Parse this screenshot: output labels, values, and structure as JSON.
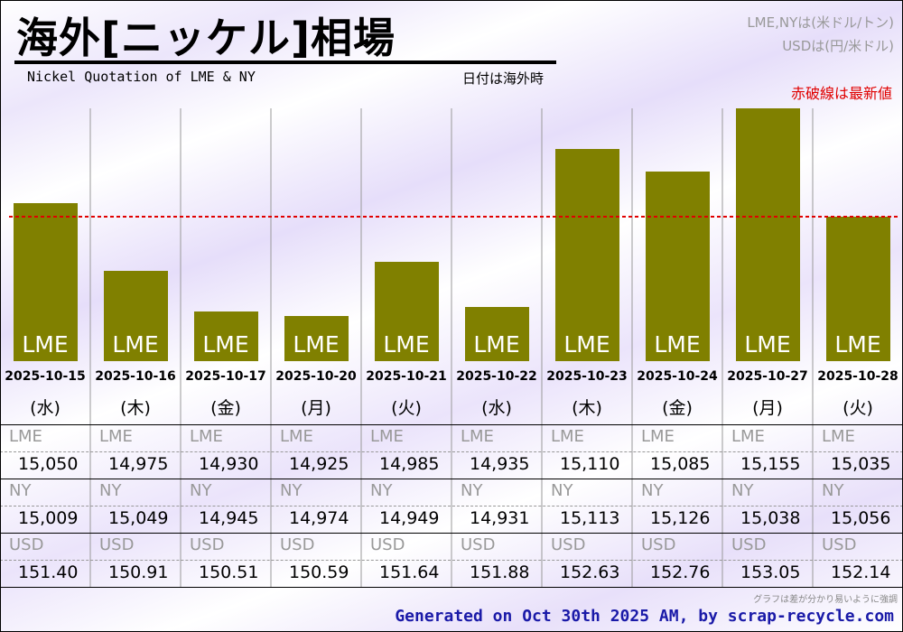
{
  "header": {
    "title": "海外[ニッケル]相場",
    "subtitle": "Nickel Quotation of LME & NY",
    "date_note": "日付は海外時",
    "unit_lme_ny": "LME,NYは(米ドル/トン)",
    "unit_usd": "USDは(円/米ドル)",
    "red_line_note": "赤破線は最新値"
  },
  "colors": {
    "bar": "#808000",
    "latest_line": "#e00000",
    "footer": "#1a1aa8"
  },
  "chart_data": {
    "type": "bar",
    "title": "海外[ニッケル]相場",
    "series": [
      {
        "name": "LME",
        "values": [
          15050,
          14975,
          14930,
          14925,
          14985,
          14935,
          15110,
          15085,
          15155,
          15035
        ]
      },
      {
        "name": "NY",
        "values": [
          15009,
          15049,
          14945,
          14974,
          14949,
          14931,
          15113,
          15126,
          15038,
          15056
        ]
      },
      {
        "name": "USD",
        "values": [
          151.4,
          150.91,
          150.51,
          150.59,
          151.64,
          151.88,
          152.63,
          152.76,
          153.05,
          152.14
        ]
      }
    ],
    "bar_series": "LME",
    "bar_label": "LME",
    "categories": [
      "2025-10-15",
      "2025-10-16",
      "2025-10-17",
      "2025-10-20",
      "2025-10-21",
      "2025-10-22",
      "2025-10-23",
      "2025-10-24",
      "2025-10-27",
      "2025-10-28"
    ],
    "weekdays": [
      "(水)",
      "(木)",
      "(金)",
      "(月)",
      "(火)",
      "(水)",
      "(木)",
      "(金)",
      "(月)",
      "(火)"
    ],
    "display_values": {
      "LME": [
        "15,050",
        "14,975",
        "14,930",
        "14,925",
        "14,985",
        "14,935",
        "15,110",
        "15,085",
        "15,155",
        "15,035"
      ],
      "NY": [
        "15,009",
        "15,049",
        "14,945",
        "14,974",
        "14,949",
        "14,931",
        "15,113",
        "15,126",
        "15,038",
        "15,056"
      ],
      "USD": [
        "151.40",
        "150.91",
        "150.51",
        "150.59",
        "151.64",
        "151.88",
        "152.63",
        "152.76",
        "153.05",
        "152.14"
      ]
    },
    "ylim": [
      14875,
      15155
    ],
    "latest_line_value": 15035
  },
  "footer": {
    "note": "グラフは差が分かり易いように強調",
    "generated": "Generated on Oct 30th 2025 AM, by scrap-recycle.com"
  }
}
